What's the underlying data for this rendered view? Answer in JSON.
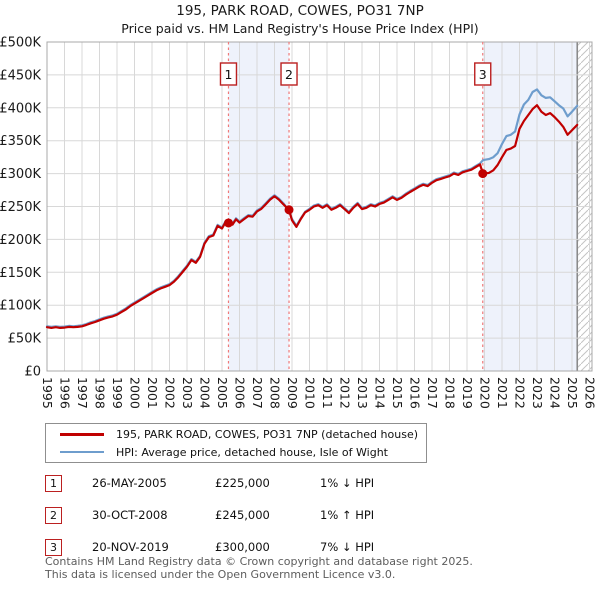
{
  "title": "195, PARK ROAD, COWES, PO31 7NP",
  "subtitle": "Price paid vs. HM Land Registry's House Price Index (HPI)",
  "legend": {
    "series1": "195, PARK ROAD, COWES, PO31 7NP (detached house)",
    "series2": "HPI: Average price, detached house, Isle of Wight"
  },
  "transactions": [
    {
      "num": "1",
      "date": "26-MAY-2005",
      "price": "£225,000",
      "hpi_diff": "1% ↓ HPI"
    },
    {
      "num": "2",
      "date": "30-OCT-2008",
      "price": "£245,000",
      "hpi_diff": "1% ↑ HPI"
    },
    {
      "num": "3",
      "date": "20-NOV-2019",
      "price": "£300,000",
      "hpi_diff": "7% ↓ HPI"
    }
  ],
  "footer": {
    "line1": "Contains HM Land Registry data © Crown copyright and database right 2025.",
    "line2": "This data is licensed under the Open Government Licence v3.0."
  },
  "colors": {
    "red": "#c00000",
    "blue": "#6e9dcd",
    "band": "#eef2fb",
    "grid": "#d8d8d8",
    "border": "#a8a8a8",
    "marker_line": "#f07878",
    "marker_box": "#bb2020",
    "hatch": "#c4c4c4",
    "hatch_edge": "#8a8a8a",
    "tick_text": "#1a1a1a"
  },
  "chart_data": {
    "type": "line",
    "title": "195, PARK ROAD, COWES, PO31 7NP — Price paid vs. HPI",
    "xlim": [
      1995,
      2026
    ],
    "ylim": [
      0,
      500000
    ],
    "grid": true,
    "legend_position": "below",
    "y_ticks": [
      0,
      50,
      100,
      150,
      200,
      250,
      300,
      350,
      400,
      450,
      500
    ],
    "y_tick_labels": [
      "£0",
      "£50K",
      "£100K",
      "£150K",
      "£200K",
      "£250K",
      "£300K",
      "£350K",
      "£400K",
      "£450K",
      "£500K"
    ],
    "x_ticks": [
      1995,
      1996,
      1997,
      1998,
      1999,
      2000,
      2001,
      2002,
      2003,
      2004,
      2005,
      2006,
      2007,
      2008,
      2009,
      2010,
      2011,
      2012,
      2013,
      2014,
      2015,
      2016,
      2017,
      2018,
      2019,
      2020,
      2021,
      2022,
      2023,
      2024,
      2025,
      2026
    ],
    "bands": [
      [
        2005.37,
        2008.83
      ],
      [
        2019.9,
        2025.3
      ]
    ],
    "hatch_start": 2025.3,
    "markers": [
      {
        "label": "1",
        "x": 2005.37,
        "y": 225
      },
      {
        "label": "2",
        "x": 2008.83,
        "y": 245
      },
      {
        "label": "3",
        "x": 2019.9,
        "y": 300
      }
    ],
    "series": [
      {
        "name": "HPI: Average price, detached house, Isle of Wight",
        "color": "blue",
        "unit": "£K",
        "points": [
          [
            1995.0,
            68
          ],
          [
            1995.25,
            67
          ],
          [
            1995.5,
            68
          ],
          [
            1995.75,
            67
          ],
          [
            1996.0,
            67.5
          ],
          [
            1996.25,
            68.5
          ],
          [
            1996.5,
            68
          ],
          [
            1996.75,
            68.5
          ],
          [
            1997.0,
            69.5
          ],
          [
            1997.25,
            71.5
          ],
          [
            1997.5,
            74
          ],
          [
            1997.75,
            76
          ],
          [
            1998.0,
            78.5
          ],
          [
            1998.25,
            81
          ],
          [
            1998.5,
            83
          ],
          [
            1998.75,
            84.5
          ],
          [
            1999.0,
            87
          ],
          [
            1999.25,
            91
          ],
          [
            1999.5,
            95
          ],
          [
            1999.75,
            100
          ],
          [
            2000.0,
            104
          ],
          [
            2000.25,
            108
          ],
          [
            2000.5,
            112
          ],
          [
            2000.75,
            116
          ],
          [
            2001.0,
            120
          ],
          [
            2001.25,
            124
          ],
          [
            2001.5,
            127
          ],
          [
            2001.75,
            129.5
          ],
          [
            2002.0,
            132
          ],
          [
            2002.25,
            137
          ],
          [
            2002.5,
            144
          ],
          [
            2002.75,
            152
          ],
          [
            2003.0,
            160
          ],
          [
            2003.25,
            170
          ],
          [
            2003.5,
            166
          ],
          [
            2003.75,
            175
          ],
          [
            2004.0,
            195
          ],
          [
            2004.25,
            205
          ],
          [
            2004.5,
            207.5
          ],
          [
            2004.75,
            222
          ],
          [
            2005.0,
            218
          ],
          [
            2005.2,
            227.5
          ],
          [
            2005.4,
            227
          ],
          [
            2005.6,
            224
          ],
          [
            2005.8,
            232
          ],
          [
            2006.0,
            227
          ],
          [
            2006.25,
            232
          ],
          [
            2006.5,
            237
          ],
          [
            2006.75,
            236
          ],
          [
            2007.0,
            244
          ],
          [
            2007.25,
            248
          ],
          [
            2007.5,
            255
          ],
          [
            2007.75,
            262
          ],
          [
            2008.0,
            267
          ],
          [
            2008.25,
            262
          ],
          [
            2008.5,
            255
          ],
          [
            2008.83,
            243
          ],
          [
            2009.0,
            231
          ],
          [
            2009.25,
            220.5
          ],
          [
            2009.5,
            232
          ],
          [
            2009.75,
            242
          ],
          [
            2010.0,
            246.5
          ],
          [
            2010.25,
            251.5
          ],
          [
            2010.5,
            253.5
          ],
          [
            2010.75,
            249.5
          ],
          [
            2011.0,
            253.5
          ],
          [
            2011.25,
            246.5
          ],
          [
            2011.5,
            249.5
          ],
          [
            2011.75,
            253.5
          ],
          [
            2012.0,
            247.5
          ],
          [
            2012.25,
            241.5
          ],
          [
            2012.5,
            249.5
          ],
          [
            2012.75,
            255.5
          ],
          [
            2013.0,
            247.5
          ],
          [
            2013.25,
            249.5
          ],
          [
            2013.5,
            253.5
          ],
          [
            2013.75,
            251.5
          ],
          [
            2014.0,
            255.5
          ],
          [
            2014.25,
            257.5
          ],
          [
            2014.5,
            261.5
          ],
          [
            2014.75,
            265.5
          ],
          [
            2015.0,
            261.5
          ],
          [
            2015.25,
            264.5
          ],
          [
            2015.5,
            269.5
          ],
          [
            2015.75,
            273.5
          ],
          [
            2016.0,
            277.5
          ],
          [
            2016.25,
            281.5
          ],
          [
            2016.5,
            284.5
          ],
          [
            2016.75,
            282.5
          ],
          [
            2017.0,
            287.5
          ],
          [
            2017.25,
            291.5
          ],
          [
            2017.5,
            293.5
          ],
          [
            2017.75,
            295.5
          ],
          [
            2018.0,
            297.5
          ],
          [
            2018.25,
            301.5
          ],
          [
            2018.5,
            299.5
          ],
          [
            2018.75,
            303.5
          ],
          [
            2019.0,
            305.5
          ],
          [
            2019.25,
            307.5
          ],
          [
            2019.5,
            311.5
          ],
          [
            2019.75,
            315.5
          ],
          [
            2019.9,
            320
          ],
          [
            2020.0,
            321
          ],
          [
            2020.25,
            322
          ],
          [
            2020.5,
            325
          ],
          [
            2020.75,
            331
          ],
          [
            2021.0,
            345
          ],
          [
            2021.25,
            357
          ],
          [
            2021.5,
            359
          ],
          [
            2021.75,
            364
          ],
          [
            2022.0,
            390
          ],
          [
            2022.25,
            405
          ],
          [
            2022.5,
            412
          ],
          [
            2022.75,
            424
          ],
          [
            2023.0,
            428
          ],
          [
            2023.25,
            419
          ],
          [
            2023.5,
            415
          ],
          [
            2023.75,
            416
          ],
          [
            2024.0,
            410
          ],
          [
            2024.25,
            404
          ],
          [
            2024.5,
            399
          ],
          [
            2024.75,
            387
          ],
          [
            2025.0,
            394
          ],
          [
            2025.3,
            403
          ]
        ]
      },
      {
        "name": "195, PARK ROAD, COWES, PO31 7NP (detached house)",
        "color": "red",
        "unit": "£K",
        "points": [
          [
            1995.0,
            66.5
          ],
          [
            1995.25,
            65.5
          ],
          [
            1995.5,
            66.5
          ],
          [
            1995.75,
            65.5
          ],
          [
            1996.0,
            66
          ],
          [
            1996.25,
            67
          ],
          [
            1996.5,
            66.5
          ],
          [
            1996.75,
            67
          ],
          [
            1997.0,
            68
          ],
          [
            1997.25,
            70
          ],
          [
            1997.5,
            72.5
          ],
          [
            1997.75,
            74.5
          ],
          [
            1998.0,
            77
          ],
          [
            1998.25,
            79.5
          ],
          [
            1998.5,
            81.5
          ],
          [
            1998.75,
            83
          ],
          [
            1999.0,
            85.5
          ],
          [
            1999.25,
            89.5
          ],
          [
            1999.5,
            93.5
          ],
          [
            1999.75,
            98.5
          ],
          [
            2000.0,
            102.5
          ],
          [
            2000.25,
            106.5
          ],
          [
            2000.5,
            110.5
          ],
          [
            2000.75,
            114.5
          ],
          [
            2001.0,
            118.5
          ],
          [
            2001.25,
            122.5
          ],
          [
            2001.5,
            125.5
          ],
          [
            2001.75,
            128
          ],
          [
            2002.0,
            130.5
          ],
          [
            2002.25,
            135.5
          ],
          [
            2002.5,
            142.5
          ],
          [
            2002.75,
            150.5
          ],
          [
            2003.0,
            158.5
          ],
          [
            2003.25,
            168.5
          ],
          [
            2003.5,
            164.5
          ],
          [
            2003.75,
            173.5
          ],
          [
            2004.0,
            193.5
          ],
          [
            2004.25,
            203.5
          ],
          [
            2004.5,
            206
          ],
          [
            2004.75,
            220.5
          ],
          [
            2005.0,
            216.5
          ],
          [
            2005.2,
            226
          ],
          [
            2005.4,
            225
          ],
          [
            2005.6,
            222.5
          ],
          [
            2005.8,
            230.5
          ],
          [
            2006.0,
            225.5
          ],
          [
            2006.25,
            230.5
          ],
          [
            2006.5,
            235.5
          ],
          [
            2006.75,
            234.5
          ],
          [
            2007.0,
            242.5
          ],
          [
            2007.25,
            246.5
          ],
          [
            2007.5,
            253.5
          ],
          [
            2007.75,
            260.5
          ],
          [
            2008.0,
            265.5
          ],
          [
            2008.25,
            260.5
          ],
          [
            2008.5,
            253.5
          ],
          [
            2008.83,
            245
          ],
          [
            2009.0,
            229
          ],
          [
            2009.25,
            219
          ],
          [
            2009.5,
            231
          ],
          [
            2009.75,
            241
          ],
          [
            2010.0,
            245
          ],
          [
            2010.25,
            250
          ],
          [
            2010.5,
            252
          ],
          [
            2010.75,
            248
          ],
          [
            2011.0,
            252
          ],
          [
            2011.25,
            245
          ],
          [
            2011.5,
            248
          ],
          [
            2011.75,
            252
          ],
          [
            2012.0,
            246
          ],
          [
            2012.25,
            240
          ],
          [
            2012.5,
            248
          ],
          [
            2012.75,
            254
          ],
          [
            2013.0,
            246
          ],
          [
            2013.25,
            248
          ],
          [
            2013.5,
            252
          ],
          [
            2013.75,
            250
          ],
          [
            2014.0,
            254
          ],
          [
            2014.25,
            256
          ],
          [
            2014.5,
            260
          ],
          [
            2014.75,
            264
          ],
          [
            2015.0,
            260
          ],
          [
            2015.25,
            263
          ],
          [
            2015.5,
            268
          ],
          [
            2015.75,
            272
          ],
          [
            2016.0,
            276
          ],
          [
            2016.25,
            280
          ],
          [
            2016.5,
            283
          ],
          [
            2016.75,
            281
          ],
          [
            2017.0,
            286
          ],
          [
            2017.25,
            290
          ],
          [
            2017.5,
            292
          ],
          [
            2017.75,
            294
          ],
          [
            2018.0,
            296
          ],
          [
            2018.25,
            300
          ],
          [
            2018.5,
            298
          ],
          [
            2018.75,
            302
          ],
          [
            2019.0,
            304
          ],
          [
            2019.25,
            306
          ],
          [
            2019.5,
            310
          ],
          [
            2019.75,
            314
          ],
          [
            2019.9,
            300
          ],
          [
            2020.0,
            300
          ],
          [
            2020.25,
            301
          ],
          [
            2020.5,
            305
          ],
          [
            2020.75,
            313
          ],
          [
            2021.0,
            325
          ],
          [
            2021.25,
            336
          ],
          [
            2021.5,
            338
          ],
          [
            2021.75,
            342
          ],
          [
            2022.0,
            368
          ],
          [
            2022.25,
            380
          ],
          [
            2022.5,
            389
          ],
          [
            2022.75,
            398
          ],
          [
            2023.0,
            404
          ],
          [
            2023.25,
            394
          ],
          [
            2023.5,
            389
          ],
          [
            2023.75,
            392
          ],
          [
            2024.0,
            386
          ],
          [
            2024.25,
            379
          ],
          [
            2024.5,
            371
          ],
          [
            2024.75,
            359
          ],
          [
            2025.0,
            366
          ],
          [
            2025.3,
            374
          ]
        ]
      }
    ]
  }
}
